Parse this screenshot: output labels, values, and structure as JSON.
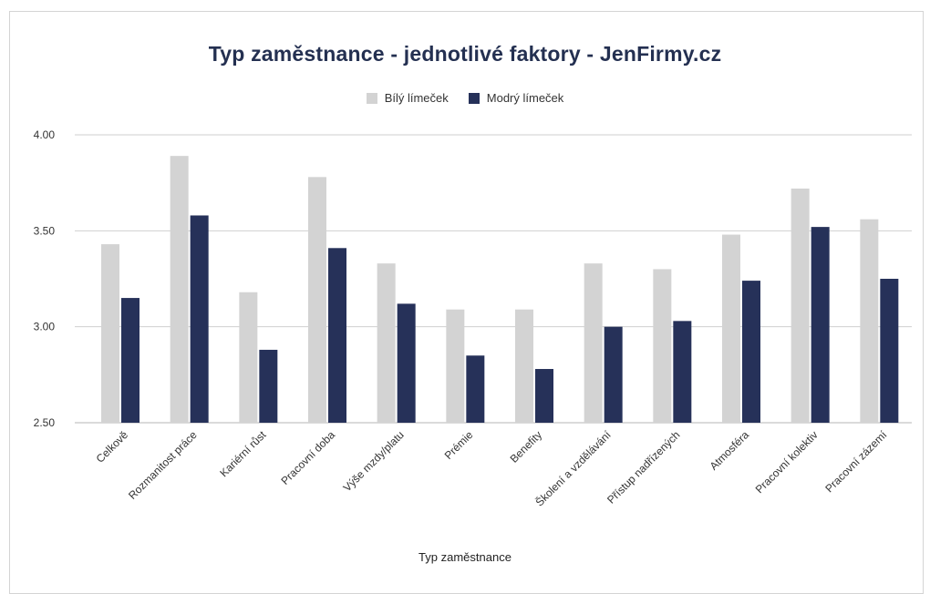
{
  "chart_data": {
    "type": "bar",
    "title": "Typ zaměstnance - jednotlivé faktory - JenFirmy.cz",
    "xlabel": "Typ zaměstnance",
    "ylabel": "",
    "ylim": [
      2.5,
      4.0
    ],
    "yticks": [
      "2.50",
      "3.00",
      "3.50",
      "4.00"
    ],
    "grid": true,
    "legend_position": "top",
    "categories": [
      "Celkově",
      "Rozmanitost práce",
      "Kariérní růst",
      "Pracovní doba",
      "Výše mzdy/platu",
      "Prémie",
      "Benefity",
      "Školení a vzdělávání",
      "Přístup nadřízených",
      "Atmosféra",
      "Pracovní kolektiv",
      "Pracovní zázemí"
    ],
    "series": [
      {
        "name": "Bílý límeček",
        "color": "#d3d3d3",
        "values": [
          3.43,
          3.89,
          3.18,
          3.78,
          3.33,
          3.09,
          3.09,
          3.33,
          3.3,
          3.48,
          3.72,
          3.56
        ]
      },
      {
        "name": "Modrý límeček",
        "color": "#263159",
        "values": [
          3.15,
          3.58,
          2.88,
          3.41,
          3.12,
          2.85,
          2.78,
          3.0,
          3.03,
          3.24,
          3.52,
          3.25
        ]
      }
    ]
  }
}
